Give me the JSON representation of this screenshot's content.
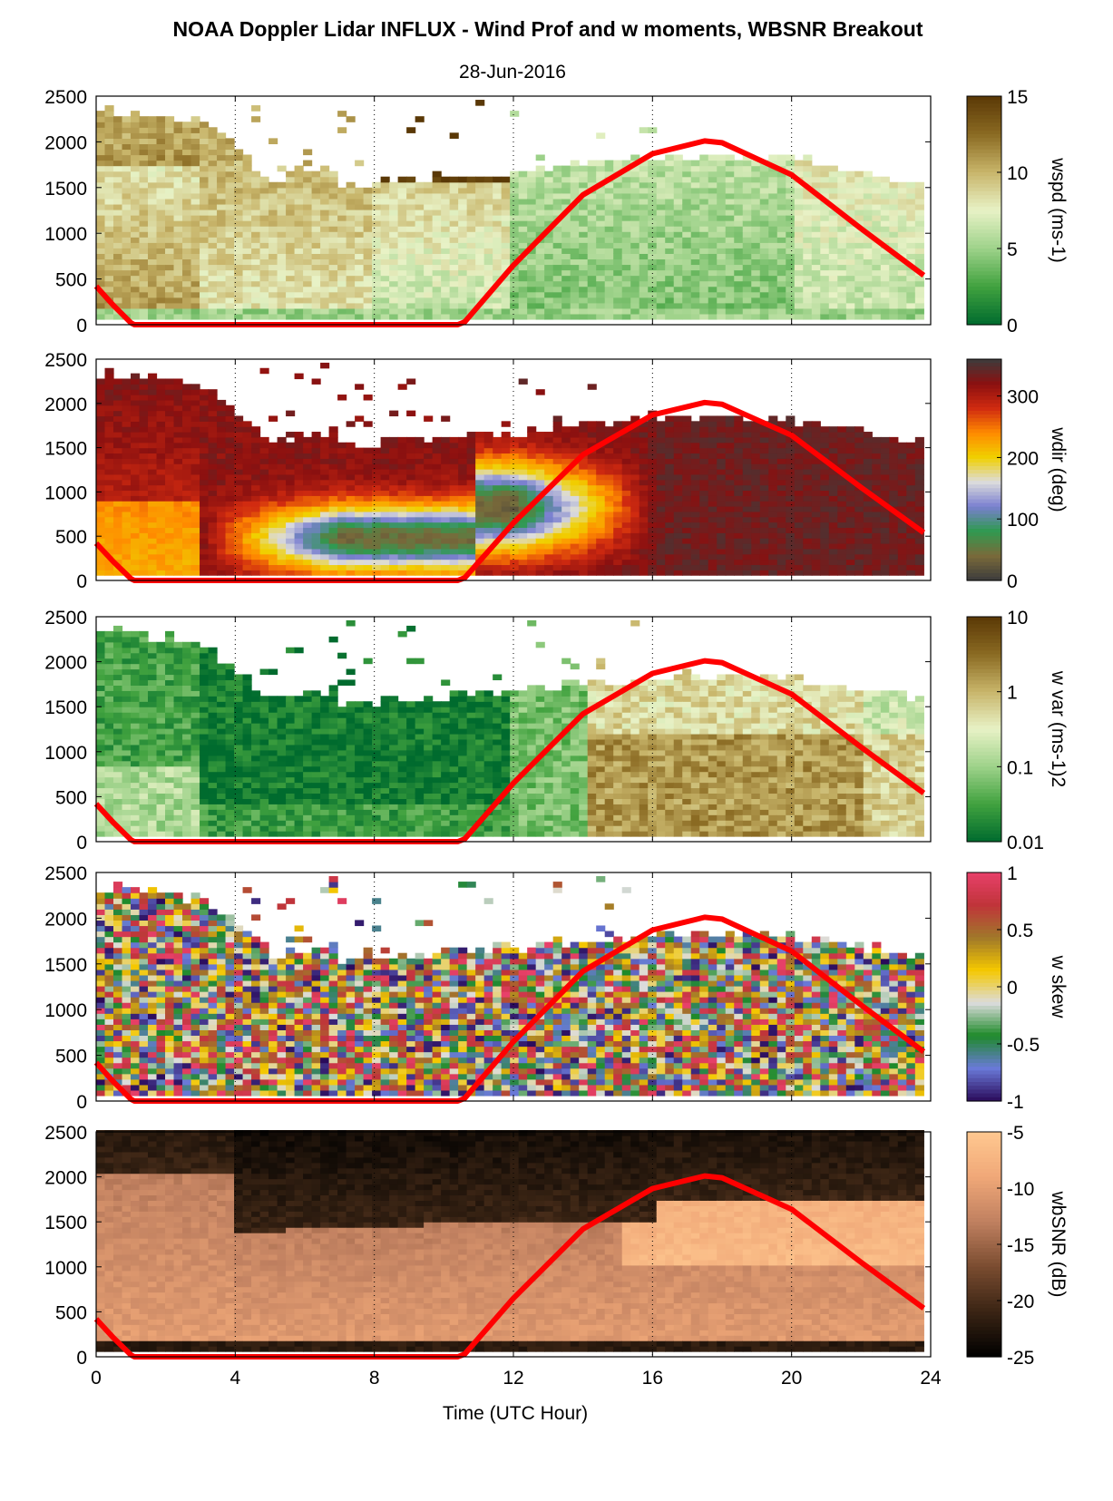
{
  "chart_data": {
    "title": "NOAA Doppler Lidar INFLUX - Wind Prof and w moments, WBSNR Breakout",
    "subtitle": "28-Jun-2016",
    "xlabel": "Time (UTC Hour)",
    "xlim": [
      0,
      24
    ],
    "xticks": [
      "0",
      "4",
      "8",
      "12",
      "16",
      "20",
      "24"
    ],
    "grid": "dotted vertical lines at 4-hour intervals",
    "panels": [
      {
        "type": "heatmap",
        "colorbar_label": "wspd (ms-1)",
        "ylim": [
          0,
          2500
        ],
        "yticks": [
          "0",
          "500",
          "1000",
          "1500",
          "2000",
          "2500"
        ],
        "colorbar_ticks": [
          "15",
          "10",
          "5",
          "0"
        ],
        "colorbar_range": [
          0,
          15
        ],
        "colormap": [
          "#006b2e",
          "#41a23f",
          "#9ed28a",
          "#e8f2c6",
          "#c8b56a",
          "#8a6a22",
          "#5a3806"
        ]
      },
      {
        "type": "heatmap",
        "colorbar_label": "wdir (deg)",
        "ylim": [
          0,
          2500
        ],
        "yticks": [
          "0",
          "500",
          "1000",
          "1500",
          "2000",
          "2500"
        ],
        "colorbar_ticks": [
          "300",
          "200",
          "100",
          "0"
        ],
        "colorbar_range": [
          0,
          360
        ],
        "colormap": [
          "#3c3c3c",
          "#7a6a3a",
          "#2f9a50",
          "#7a7fd0",
          "#dcdcdc",
          "#f0d000",
          "#ff8a00",
          "#d02a10",
          "#8a1010",
          "#3c3c3c"
        ]
      },
      {
        "type": "heatmap",
        "colorbar_label": "w var (ms-1)2",
        "ylim": [
          0,
          2500
        ],
        "yticks": [
          "0",
          "500",
          "1000",
          "1500",
          "2000",
          "2500"
        ],
        "colorbar_ticks": [
          "10",
          "1",
          "0.1",
          "0.01"
        ],
        "colorbar_scale": "log",
        "colorbar_range": [
          0.01,
          10
        ],
        "colormap": [
          "#006b2e",
          "#41a23f",
          "#9ed28a",
          "#e8f2c6",
          "#c8b56a",
          "#8a6a22",
          "#5a3806"
        ]
      },
      {
        "type": "heatmap",
        "colorbar_label": "w skew",
        "ylim": [
          0,
          2500
        ],
        "yticks": [
          "0",
          "500",
          "1000",
          "1500",
          "2000",
          "2500"
        ],
        "colorbar_ticks": [
          "1",
          "0.5",
          "0",
          "-0.5",
          "-1"
        ],
        "colorbar_range": [
          -1,
          1
        ],
        "colormap": [
          "#2a0a5a",
          "#6a7ad8",
          "#1e8a2a",
          "#dcdcdc",
          "#f5c800",
          "#a0782a",
          "#c0343a",
          "#e8406a"
        ]
      },
      {
        "type": "heatmap",
        "colorbar_label": "wbSNR (dB)",
        "ylim": [
          0,
          2500
        ],
        "yticks": [
          "0",
          "500",
          "1000",
          "1500",
          "2000",
          "2500"
        ],
        "colorbar_ticks": [
          "-5",
          "-10",
          "-15",
          "-20",
          "-25"
        ],
        "colorbar_range": [
          -25,
          -5
        ],
        "colormap": [
          "#000000",
          "#3a2414",
          "#7a4c30",
          "#c08060",
          "#f0a878",
          "#ffc890"
        ]
      }
    ],
    "overlay_line": {
      "color": "#ff0000",
      "description": "solar elevation curve (scaled)",
      "x": [
        0,
        0.5,
        1.0,
        1.1,
        10.4,
        10.6,
        12,
        14,
        16,
        17.5,
        18,
        20,
        22,
        23.8
      ],
      "y": [
        420,
        210,
        20,
        0,
        0,
        30,
        650,
        1420,
        1870,
        2010,
        1990,
        1640,
        1050,
        540
      ]
    }
  }
}
